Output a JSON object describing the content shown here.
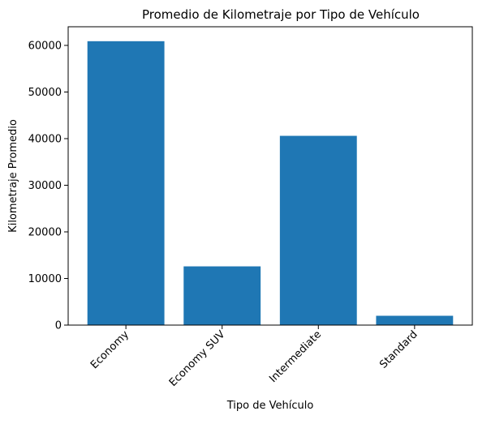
{
  "chart_data": {
    "type": "bar",
    "title": "Promedio de Kilometraje por Tipo de Vehículo",
    "xlabel": "Tipo de Vehículo",
    "ylabel": "Kilometraje Promedio",
    "categories": [
      "Economy",
      "Economy SUV",
      "Intermediate",
      "Standard"
    ],
    "values": [
      60900,
      12600,
      40600,
      2000
    ],
    "ylim": [
      0,
      64000
    ],
    "yticks": [
      0,
      10000,
      20000,
      30000,
      40000,
      50000,
      60000
    ],
    "ytick_labels": [
      "0",
      "10000",
      "20000",
      "30000",
      "40000",
      "50000",
      "60000"
    ],
    "x_tick_rotation_deg": 45,
    "grid": false,
    "legend": "none",
    "bar_color": "#1f77b4"
  }
}
